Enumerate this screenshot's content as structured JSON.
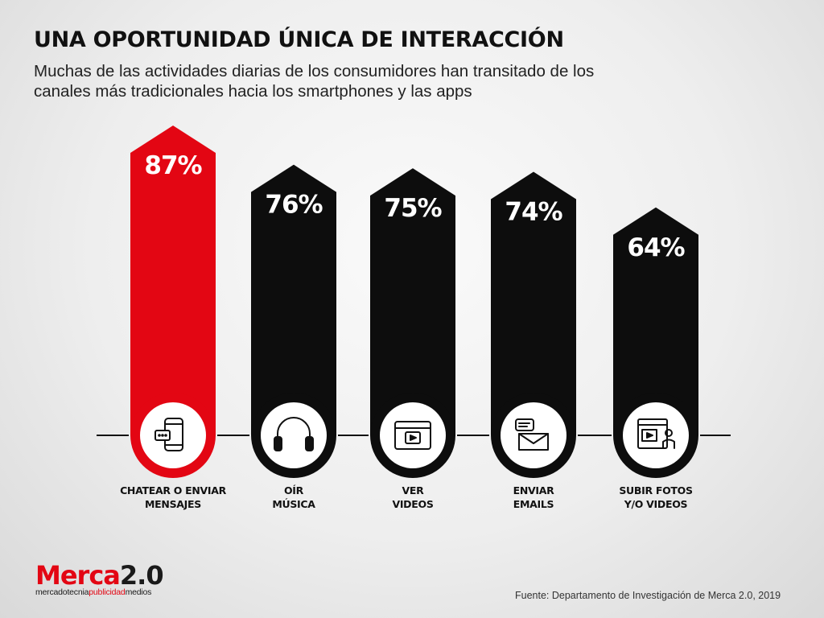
{
  "title": "UNA OPORTUNIDAD ÚNICA DE INTERACCIÓN",
  "subtitle": "Muchas de las actividades diarias de los consumidores han transitado de los canales más tradicionales hacia los smartphones y las apps",
  "source": "Fuente: Departamento de Investigación de Merca 2.0, 2019",
  "logo": {
    "main_red": "Merca",
    "main_dark": "2.0",
    "sub_1": "mercadotecnia",
    "sub_2": "publicidad",
    "sub_3": "medios"
  },
  "colors": {
    "highlight": "#e30613",
    "bar": "#0d0d0d",
    "ring": "#ffffff"
  },
  "chart_data": {
    "type": "bar",
    "categories": [
      "CHATEAR O ENVIAR\nMENSAJES",
      "OÍR\nMÚSICA",
      "VER\nVIDEOS",
      "ENVIAR\nEMAILS",
      "SUBIR FOTOS\nY/O VIDEOS"
    ],
    "values": [
      87,
      76,
      75,
      74,
      64
    ],
    "value_labels": [
      "87%",
      "76%",
      "75%",
      "74%",
      "64%"
    ],
    "icons": [
      "smartphone-chat-icon",
      "headphones-icon",
      "video-player-icon",
      "email-icon",
      "upload-media-icon"
    ],
    "highlighted_index": 0,
    "ylim": [
      0,
      100
    ],
    "grid": false
  }
}
